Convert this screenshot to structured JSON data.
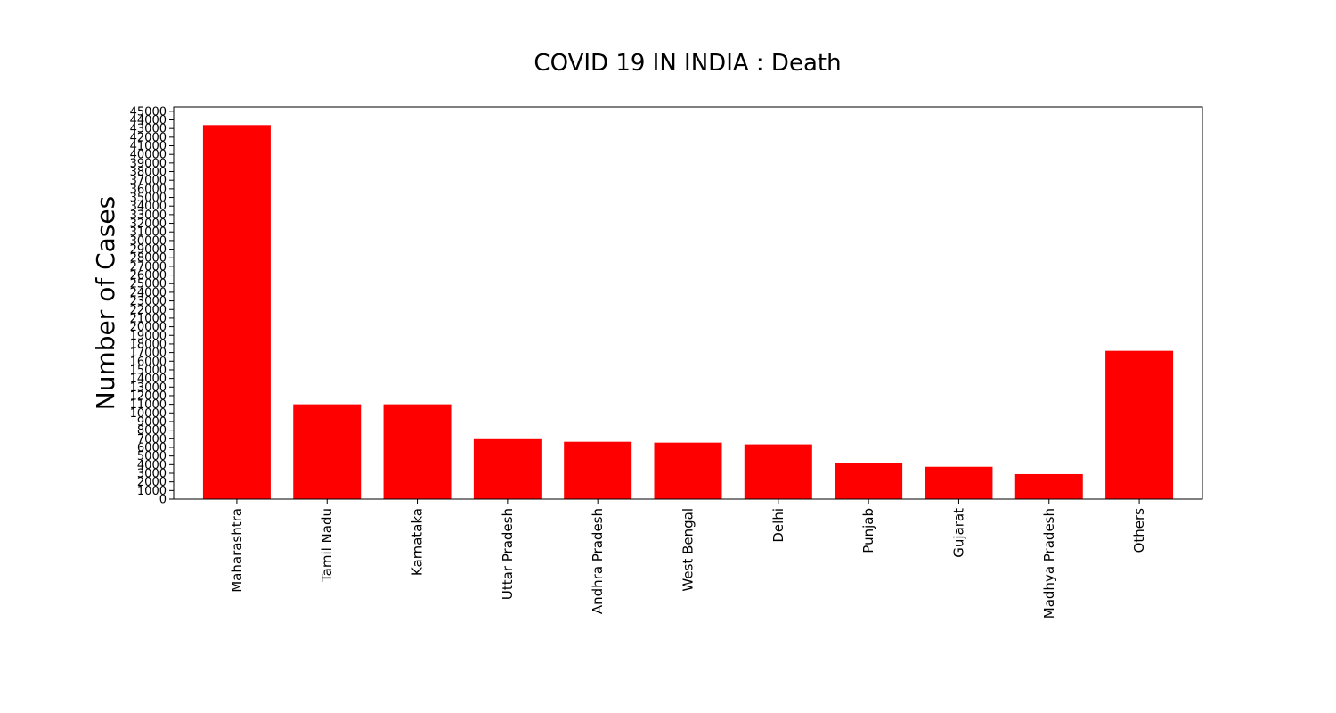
{
  "chart_data": {
    "type": "bar",
    "title": "COVID 19 IN INDIA : Death",
    "xlabel": "",
    "ylabel": "Number of Cases",
    "categories": [
      "Maharashtra",
      "Tamil Nadu",
      "Karnataka",
      "Uttar Pradesh",
      "Andhra Pradesh",
      "West Bengal",
      "Delhi",
      "Punjab",
      "Gujarat",
      "Madhya Pradesh",
      "Others"
    ],
    "values": [
      43400,
      11000,
      11000,
      6950,
      6650,
      6550,
      6350,
      4150,
      3750,
      2900,
      17200
    ],
    "ylim": [
      0,
      45500
    ],
    "ytick_step": 1000,
    "bar_color": "#ff0000",
    "grid": false,
    "legend": "none"
  }
}
